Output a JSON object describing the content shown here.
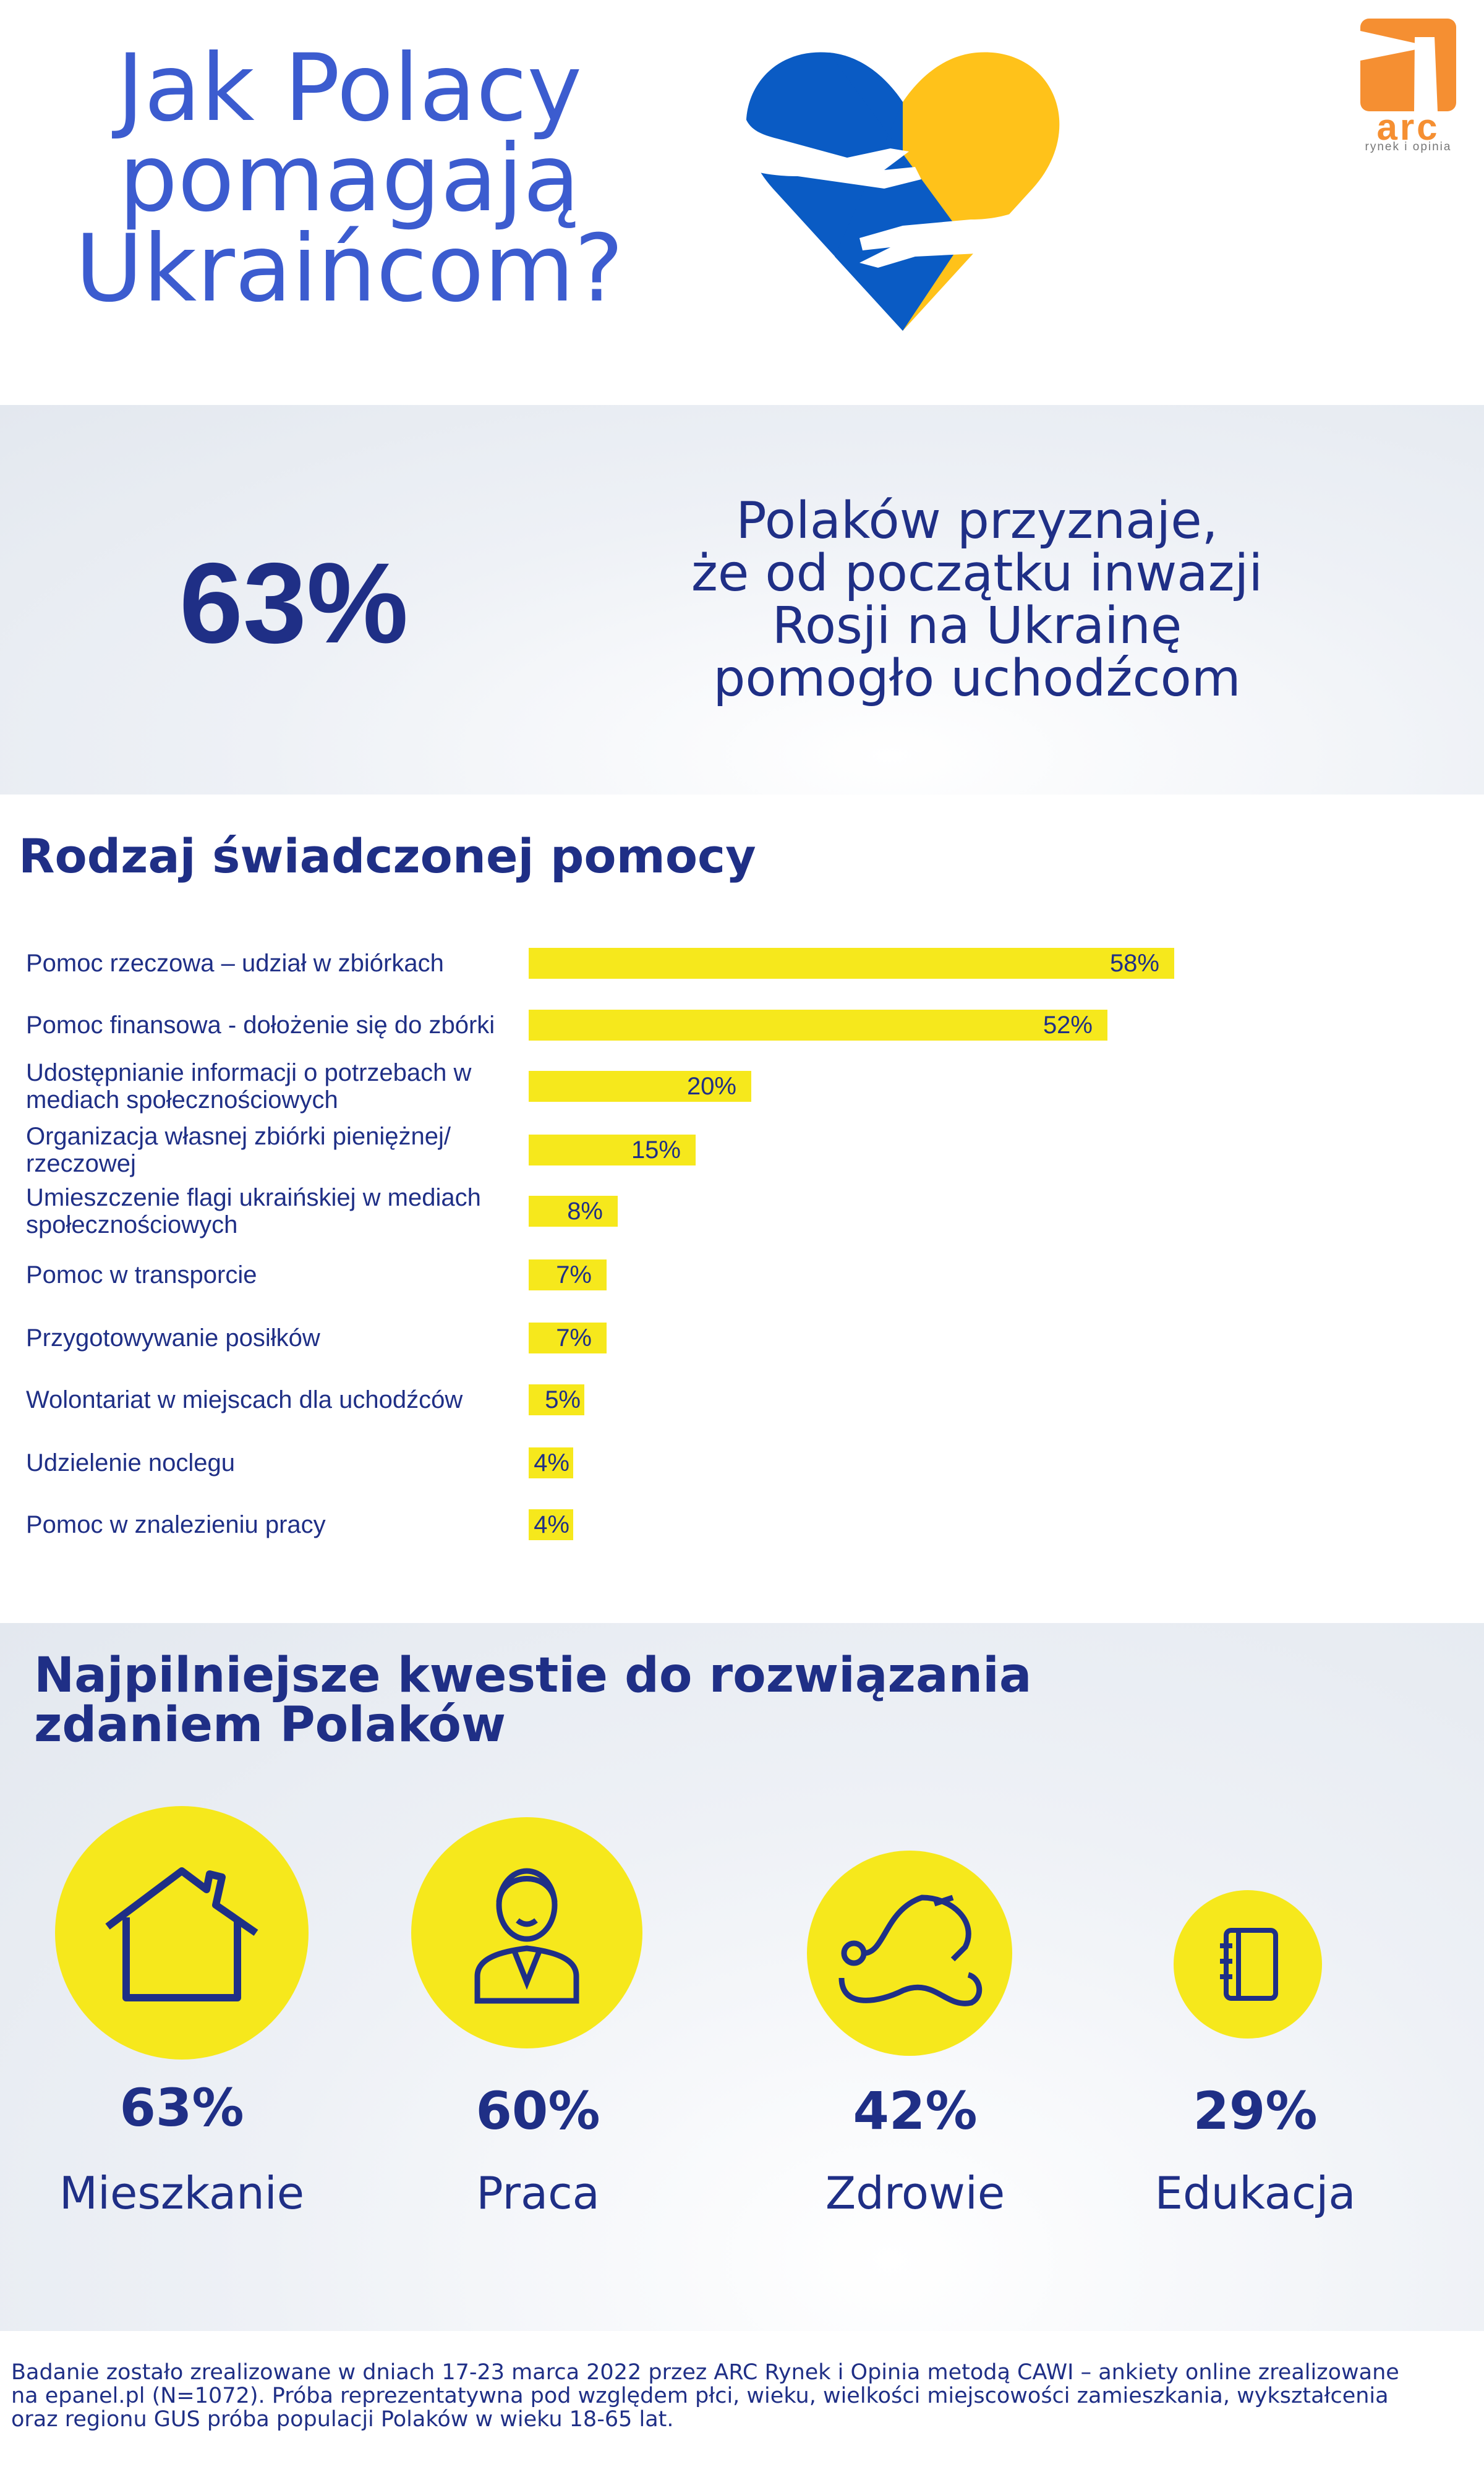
{
  "title": {
    "line1": "Jak Polacy",
    "line2": "pomagają",
    "line3": "Ukraińcom?"
  },
  "logo": {
    "brand": "arc",
    "tagline": "rynek i opinia",
    "color": "#f58f32"
  },
  "highlight": {
    "value": "63%",
    "lines": [
      "Polaków przyznaje,",
      "że od początku inwazji",
      "Rosji na Ukrainę",
      "pomogło uchodźcom"
    ]
  },
  "chart_data": {
    "type": "bar",
    "orientation": "horizontal",
    "title": "Rodzaj świadczonej pomocy",
    "unit": "%",
    "categories": [
      "Pomoc rzeczowa – udział w zbiórkach",
      "Pomoc finansowa - dołożenie się do zbórki",
      "Udostępnianie informacji o potrzebach w mediach społecznościowych",
      "Organizacja własnej zbiórki pieniężnej/ rzeczowej",
      "Umieszczenie flagi ukraińskiej w mediach społecznościowych",
      "Pomoc w transporcie",
      "Przygotowywanie posiłków",
      "Wolontariat w miejscach dla uchodźców",
      "Udzielenie noclegu",
      "Pomoc w znalezieniu pracy"
    ],
    "values": [
      58,
      52,
      20,
      15,
      8,
      7,
      7,
      5,
      4,
      4
    ],
    "labels": [
      "58%",
      "52%",
      "20%",
      "15%",
      "8%",
      "7%",
      "7%",
      "5%",
      "4%",
      "4%"
    ],
    "bar_color": "#f6e81c"
  },
  "issues": {
    "title_line1": "Najpilniejsze kwestie do rozwiązania",
    "title_line2": "zdaniem Polaków",
    "items": [
      {
        "icon": "house-icon",
        "value": "63%",
        "label": "Mieszkanie"
      },
      {
        "icon": "worker-icon",
        "value": "60%",
        "label": "Praca"
      },
      {
        "icon": "stethoscope-icon",
        "value": "42%",
        "label": "Zdrowie"
      },
      {
        "icon": "notebook-icon",
        "value": "29%",
        "label": "Edukacja"
      }
    ]
  },
  "footer": {
    "line1": "Badanie zostało zrealizowane w dniach 17-23 marca 2022 przez ARC Rynek i Opinia metodą CAWI – ankiety online zrealizowane",
    "line2": "na epanel.pl (N=1072). Próba reprezentatywna pod względem płci, wieku, wielkości miejscowości zamieszkania, wykształcenia",
    "line3": "oraz regionu GUS próba populacji Polaków w wieku 18-65 lat."
  }
}
